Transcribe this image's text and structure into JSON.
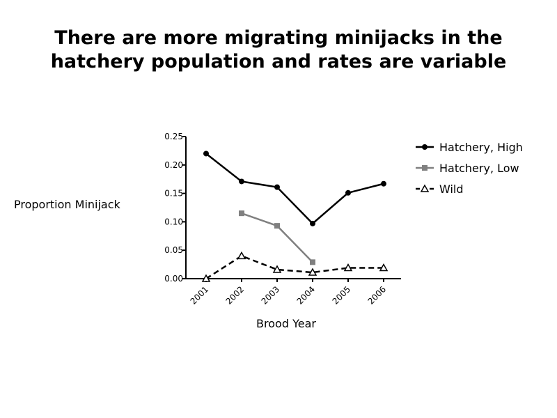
{
  "slide": {
    "title_line1": "There are more migrating minijacks in the",
    "title_line2": "hatchery population and rates are variable"
  },
  "chart_data": {
    "type": "line",
    "title": "",
    "xlabel": "Brood Year",
    "ylabel": "Proportion Minijack",
    "categories": [
      "2001",
      "2002",
      "2003",
      "2004",
      "2005",
      "2006"
    ],
    "ylim": [
      0,
      0.25
    ],
    "yticks": [
      "0.00",
      "0.05",
      "0.10",
      "0.15",
      "0.20",
      "0.25"
    ],
    "grid": false,
    "legend_position": "right",
    "series": [
      {
        "name": "Hatchery, High",
        "values": [
          0.22,
          0.171,
          0.161,
          0.097,
          0.151,
          0.167
        ],
        "color": "#000000",
        "marker": "circle",
        "dash": "solid"
      },
      {
        "name": "Hatchery, Low",
        "values": [
          null,
          0.115,
          0.093,
          0.029,
          null,
          null
        ],
        "color": "#808080",
        "marker": "square",
        "dash": "solid"
      },
      {
        "name": "Wild",
        "values": [
          0.0,
          0.04,
          0.016,
          0.011,
          0.019,
          0.019
        ],
        "color": "#000000",
        "marker": "triangle-open",
        "dash": "dashed"
      }
    ]
  }
}
